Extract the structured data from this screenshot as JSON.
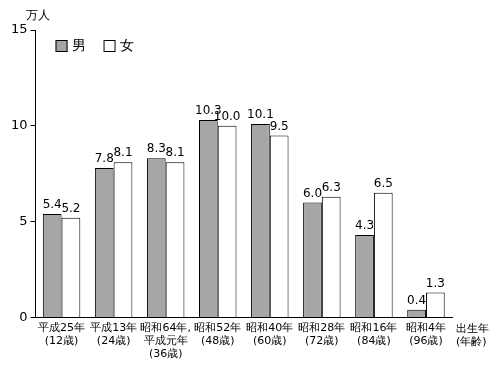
{
  "chart_data": {
    "type": "bar",
    "y_label": "万人",
    "x_label": "出生年\n(年齢)",
    "categories": [
      "平成25年\n(12歳)",
      "平成13年\n(24歳)",
      "昭和64年,\n平成元年\n(36歳)",
      "昭和52年\n(48歳)",
      "昭和40年\n(60歳)",
      "昭和28年\n(72歳)",
      "昭和16年\n(84歳)",
      "昭和4年\n(96歳)"
    ],
    "series": [
      {
        "name": "男",
        "color": "#a6a6a6",
        "values": [
          5.4,
          7.8,
          8.3,
          10.3,
          10.1,
          6.0,
          4.3,
          0.4
        ],
        "value_labels": [
          "5.4",
          "7.8",
          "8.3",
          "10.3",
          "10.1",
          "6.0",
          "4.3",
          "0.4"
        ]
      },
      {
        "name": "女",
        "color": "#ffffff",
        "values": [
          5.2,
          8.1,
          8.1,
          10.0,
          9.5,
          6.3,
          6.5,
          1.3
        ],
        "value_labels": [
          "5.2",
          "8.1",
          "8.1",
          "10.0",
          "9.5",
          "6.3",
          "6.5",
          "1.3"
        ]
      }
    ],
    "ylim": [
      0,
      15
    ],
    "yticks": [
      0,
      5,
      10,
      15
    ],
    "grid": false,
    "legend": "upper left",
    "data_labels": true
  }
}
